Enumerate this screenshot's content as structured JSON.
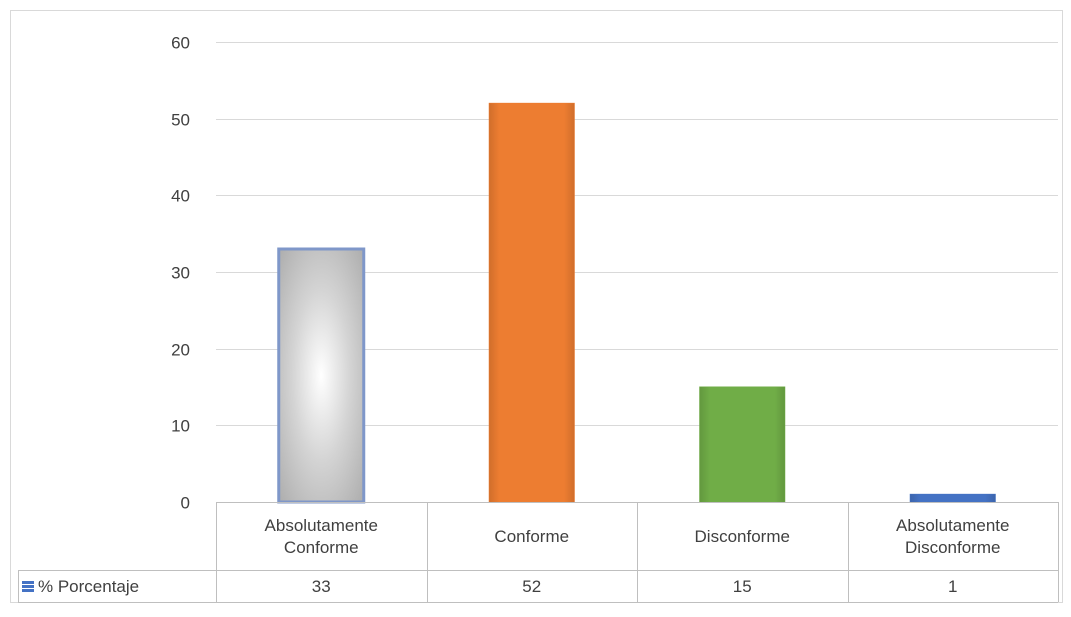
{
  "chart_data": {
    "type": "bar",
    "title": "",
    "xlabel": "",
    "ylabel": "",
    "categories": [
      [
        "Absolutamente",
        "Conforme"
      ],
      [
        "Conforme"
      ],
      [
        "Disconforme"
      ],
      [
        "Absolutamente",
        "Disconforme"
      ]
    ],
    "series": [
      {
        "name": "% Porcentaje",
        "values": [
          33,
          52,
          15,
          1
        ],
        "colors": [
          "#c0c0c0",
          "#ed7d31",
          "#70ad47",
          "#4472c4"
        ]
      }
    ],
    "ylim": [
      0,
      60
    ],
    "yticks": [
      0,
      10,
      20,
      30,
      40,
      50,
      60
    ],
    "grid": true,
    "data_table": true,
    "legend": "data-table-row"
  }
}
